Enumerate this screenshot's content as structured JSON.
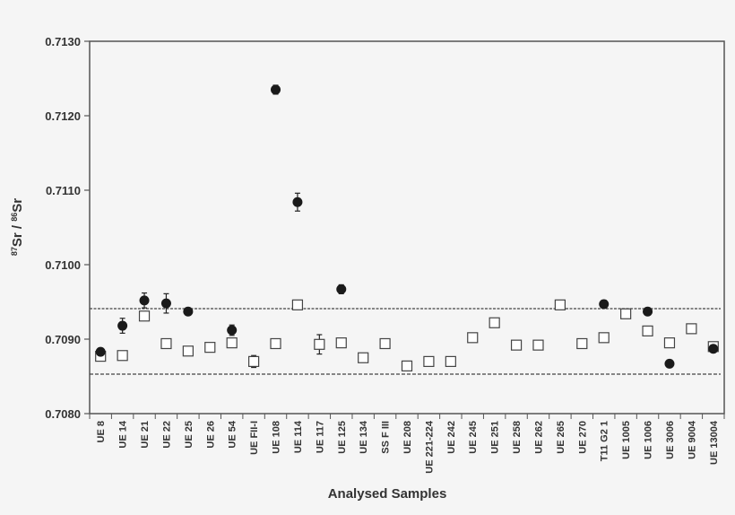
{
  "chart_data": {
    "type": "scatter",
    "title": "",
    "xlabel": "Analysed Samples",
    "ylabel": {
      "prefix_sup": "87",
      "prefix": "Sr / ",
      "suffix_sup": "86",
      "suffix": "Sr"
    },
    "ylim": [
      0.708,
      0.713
    ],
    "yticks": [
      "0.7080",
      "0.7090",
      "0.7100",
      "0.7110",
      "0.7120",
      "0.7130"
    ],
    "grid": false,
    "categories": [
      "UE 8",
      "UE 14",
      "UE 21",
      "UE 22",
      "UE 25",
      "UE 26",
      "UE 54",
      "UE FII-I",
      "UE 108",
      "UE 114",
      "UE 117",
      "UE 125",
      "UE 134",
      "SS F III",
      "UE 208",
      "UE 221-224",
      "UE 242",
      "UE 245",
      "UE 251",
      "UE 258",
      "UE 262",
      "UE 265",
      "UE 270",
      "T11 G2 1",
      "UE 1005",
      "UE 1006",
      "UE 3006",
      "UE 9004",
      "UE 13004"
    ],
    "series": [
      {
        "marker": "open-square",
        "color": "#ffffff",
        "values": [
          0.70877,
          0.70878,
          0.70931,
          0.70894,
          0.70884,
          0.70889,
          0.70895,
          0.7087,
          0.70894,
          0.70946,
          0.70893,
          0.70895,
          0.70875,
          0.70894,
          0.70864,
          0.7087,
          0.7087,
          0.70902,
          0.70922,
          0.70892,
          0.70892,
          0.70946,
          0.70894,
          0.70902,
          0.70934,
          0.70911,
          0.70895,
          0.70914,
          0.7089
        ],
        "errors": [
          0,
          0,
          0,
          0,
          0,
          4e-05,
          0,
          8e-05,
          0,
          0,
          0.00013,
          6e-05,
          0,
          0,
          0,
          0,
          4e-05,
          4e-05,
          4e-05,
          0,
          0,
          4e-05,
          5e-05,
          6e-05,
          0,
          0,
          0,
          4e-05,
          0
        ]
      },
      {
        "marker": "filled-circle",
        "color": "#1a1a1a",
        "values": [
          0.70883,
          0.70918,
          0.70952,
          0.70948,
          0.70937,
          null,
          0.70912,
          null,
          0.71235,
          0.71084,
          null,
          0.70967,
          null,
          null,
          null,
          null,
          null,
          null,
          null,
          null,
          null,
          null,
          null,
          0.70947,
          null,
          0.70937,
          0.70867,
          null,
          0.70887
        ],
        "errors": [
          0,
          0.0001,
          0.0001,
          0.00013,
          0,
          null,
          7e-05,
          null,
          6e-05,
          0.00012,
          null,
          6e-05,
          null,
          null,
          null,
          null,
          null,
          null,
          null,
          null,
          null,
          null,
          null,
          5e-05,
          null,
          0,
          0,
          null,
          0
        ]
      }
    ],
    "reference_lines": [
      {
        "y": 0.70941,
        "style": "dotted"
      },
      {
        "y": 0.70853,
        "style": "dashed"
      }
    ]
  }
}
